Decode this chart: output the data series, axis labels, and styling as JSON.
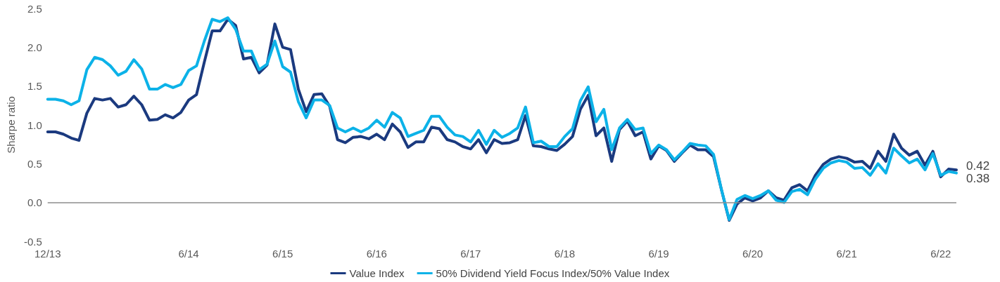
{
  "chart_data": {
    "type": "line",
    "ylabel": "Sharpe ratio",
    "categories": [
      "12/13",
      null,
      null,
      null,
      null,
      null,
      null,
      null,
      null,
      null,
      null,
      null,
      null,
      null,
      null,
      null,
      null,
      null,
      "6/14",
      null,
      null,
      null,
      null,
      null,
      null,
      null,
      null,
      null,
      null,
      null,
      "6/15",
      null,
      null,
      null,
      null,
      null,
      null,
      null,
      null,
      null,
      null,
      null,
      "6/16",
      null,
      null,
      null,
      null,
      null,
      null,
      null,
      null,
      null,
      null,
      null,
      "6/17",
      null,
      null,
      null,
      null,
      null,
      null,
      null,
      null,
      null,
      null,
      null,
      "6/18",
      null,
      null,
      null,
      null,
      null,
      null,
      null,
      null,
      null,
      null,
      null,
      "6/19",
      null,
      null,
      null,
      null,
      null,
      null,
      null,
      null,
      null,
      null,
      null,
      "6/20",
      null,
      null,
      null,
      null,
      null,
      null,
      null,
      null,
      null,
      null,
      null,
      "6/21",
      null,
      null,
      null,
      null,
      null,
      null,
      null,
      null,
      null,
      null,
      null,
      "6/22",
      null,
      null
    ],
    "series": [
      {
        "name": "Value Index",
        "color": "#1b3a7f",
        "values": [
          0.91,
          0.91,
          0.88,
          0.83,
          0.8,
          1.15,
          1.34,
          1.32,
          1.34,
          1.23,
          1.26,
          1.37,
          1.26,
          1.06,
          1.07,
          1.13,
          1.09,
          1.16,
          1.32,
          1.39,
          1.81,
          2.21,
          2.21,
          2.36,
          2.28,
          1.85,
          1.87,
          1.67,
          1.77,
          2.3,
          2.0,
          1.97,
          1.46,
          1.17,
          1.39,
          1.4,
          1.24,
          0.81,
          0.77,
          0.84,
          0.85,
          0.82,
          0.88,
          0.81,
          1.01,
          0.91,
          0.71,
          0.78,
          0.78,
          0.97,
          0.95,
          0.81,
          0.78,
          0.72,
          0.69,
          0.81,
          0.64,
          0.81,
          0.76,
          0.77,
          0.81,
          1.12,
          0.73,
          0.72,
          0.69,
          0.67,
          0.75,
          0.85,
          1.2,
          1.38,
          0.86,
          0.96,
          0.53,
          0.94,
          1.05,
          0.86,
          0.91,
          0.56,
          0.73,
          0.67,
          0.53,
          0.64,
          0.74,
          0.68,
          0.68,
          0.59,
          0.17,
          -0.23,
          -0.02,
          0.06,
          0.02,
          0.06,
          0.15,
          0.06,
          0.03,
          0.19,
          0.23,
          0.15,
          0.35,
          0.49,
          0.56,
          0.59,
          0.57,
          0.52,
          0.53,
          0.44,
          0.66,
          0.53,
          0.88,
          0.7,
          0.61,
          0.66,
          0.48,
          0.66,
          0.33,
          0.43,
          0.42
        ],
        "value_labels": [
          null,
          null,
          null,
          null,
          null,
          null,
          null,
          null,
          null,
          null,
          null,
          null,
          null,
          null,
          null,
          null,
          null,
          null,
          null,
          null,
          null,
          null,
          null,
          null,
          null,
          null,
          null,
          null,
          null,
          null,
          null,
          null,
          null,
          null,
          null,
          null,
          null,
          null,
          null,
          null,
          null,
          null,
          null,
          null,
          null,
          null,
          null,
          null,
          null,
          null,
          null,
          null,
          null,
          null,
          null,
          null,
          null,
          null,
          null,
          null,
          null,
          null,
          null,
          null,
          null,
          null,
          null,
          null,
          null,
          null,
          null,
          null,
          null,
          null,
          null,
          null,
          null,
          null,
          null,
          null,
          null,
          null,
          null,
          null,
          null,
          null,
          null,
          null,
          null,
          null,
          null,
          null,
          null,
          null,
          null,
          null,
          null,
          null,
          null,
          null,
          null,
          null,
          null,
          null,
          null,
          null,
          null,
          null,
          null,
          null,
          null,
          null,
          null,
          null,
          null,
          null,
          "0.42"
        ]
      },
      {
        "name": "50% Dividend Yield Focus Index/50% Value Index",
        "color": "#0cb2e8",
        "values": [
          1.33,
          1.33,
          1.31,
          1.26,
          1.31,
          1.71,
          1.87,
          1.84,
          1.76,
          1.64,
          1.69,
          1.84,
          1.72,
          1.46,
          1.46,
          1.52,
          1.48,
          1.52,
          1.7,
          1.76,
          2.08,
          2.36,
          2.33,
          2.38,
          2.23,
          1.95,
          1.95,
          1.71,
          1.78,
          2.08,
          1.75,
          1.68,
          1.3,
          1.09,
          1.32,
          1.32,
          1.25,
          0.96,
          0.91,
          0.96,
          0.91,
          0.96,
          1.06,
          0.97,
          1.16,
          1.09,
          0.85,
          0.89,
          0.93,
          1.11,
          1.11,
          0.97,
          0.87,
          0.85,
          0.78,
          0.93,
          0.75,
          0.93,
          0.84,
          0.89,
          0.96,
          1.23,
          0.77,
          0.79,
          0.72,
          0.72,
          0.85,
          0.95,
          1.31,
          1.49,
          1.04,
          1.2,
          0.68,
          0.96,
          1.07,
          0.94,
          0.96,
          0.63,
          0.74,
          0.68,
          0.55,
          0.65,
          0.76,
          0.74,
          0.73,
          0.62,
          0.17,
          -0.22,
          0.04,
          0.09,
          0.05,
          0.09,
          0.15,
          0.03,
          0.0,
          0.14,
          0.17,
          0.1,
          0.3,
          0.44,
          0.51,
          0.54,
          0.52,
          0.44,
          0.45,
          0.35,
          0.5,
          0.38,
          0.7,
          0.6,
          0.51,
          0.56,
          0.42,
          0.63,
          0.35,
          0.4,
          0.38
        ],
        "value_labels": [
          null,
          null,
          null,
          null,
          null,
          null,
          null,
          null,
          null,
          null,
          null,
          null,
          null,
          null,
          null,
          null,
          null,
          null,
          null,
          null,
          null,
          null,
          null,
          null,
          null,
          null,
          null,
          null,
          null,
          null,
          null,
          null,
          null,
          null,
          null,
          null,
          null,
          null,
          null,
          null,
          null,
          null,
          null,
          null,
          null,
          null,
          null,
          null,
          null,
          null,
          null,
          null,
          null,
          null,
          null,
          null,
          null,
          null,
          null,
          null,
          null,
          null,
          null,
          null,
          null,
          null,
          null,
          null,
          null,
          null,
          null,
          null,
          null,
          null,
          null,
          null,
          null,
          null,
          null,
          null,
          null,
          null,
          null,
          null,
          null,
          null,
          null,
          null,
          null,
          null,
          null,
          null,
          null,
          null,
          null,
          null,
          null,
          null,
          null,
          null,
          null,
          null,
          null,
          null,
          null,
          null,
          null,
          null,
          null,
          null,
          null,
          null,
          null,
          null,
          null,
          null,
          "0.38"
        ]
      }
    ],
    "ylim": [
      -0.5,
      2.5
    ],
    "yticks": [
      {
        "value": -0.5,
        "label": "-0.5"
      },
      {
        "value": 0,
        "label": "0.0"
      },
      {
        "value": 0.5,
        "label": "0.5"
      },
      {
        "value": 1,
        "label": "1.0"
      },
      {
        "value": 1.5,
        "label": "1.5"
      },
      {
        "value": 2,
        "label": "2.0"
      },
      {
        "value": 2.5,
        "label": "2.5"
      }
    ],
    "ref_lines": [
      {
        "axis": "y",
        "value": 0,
        "color": "#8c8c8c"
      }
    ],
    "grid": false,
    "legend": "bottom",
    "marker": "none",
    "line_style": "solid"
  }
}
